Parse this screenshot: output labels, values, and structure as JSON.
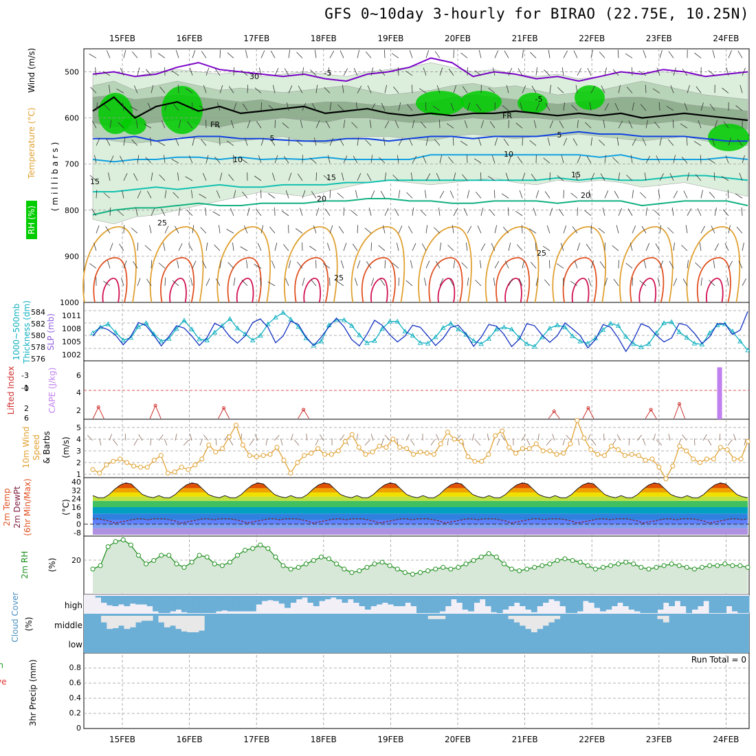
{
  "title": "GFS 0~10day 3-hourly for BIRAO (22.75E, 10.25N)",
  "dates": [
    "15FEB",
    "16FEB",
    "17FEB",
    "18FEB",
    "19FEB",
    "20FEB",
    "21FEB",
    "22FEB",
    "23FEB",
    "24FEB"
  ],
  "colors": {
    "rh_green": "#00cc00",
    "rh_light": "#dcefdc",
    "rh_mid": "#b8d4b8",
    "rh_dark": "#90b090",
    "purple": "#7a00c8",
    "blue": "#1040e0",
    "lightblue": "#10a0e0",
    "teal": "#10c0b0",
    "green": "#10b080",
    "orange": "#e0a030",
    "red": "#e05020",
    "crimson": "#d01050",
    "cloud": "#6baed6",
    "cloud_bg": "#f3eff7",
    "rhfill": "#d8e8d8",
    "rhline": "#209020"
  },
  "chart_data": [
    {
      "id": "upper_air",
      "type": "heatmap",
      "ylabel_parts": [
        "RH (%)",
        "Temperature (°C)",
        "Wind (m/s)"
      ],
      "ylabel_sub": "(millibars)",
      "y_ticks": [
        "500",
        "600",
        "700",
        "800",
        "900",
        "1000"
      ],
      "ylim": [
        1000,
        450
      ],
      "contour_labels": [
        "-5",
        "FR",
        "5",
        "10",
        "15",
        "20",
        "25",
        "30"
      ],
      "isotherms": [
        {
          "label": "-5",
          "level": [
            505,
            500,
            510,
            505,
            490,
            480,
            495,
            500,
            505,
            510,
            505,
            515,
            520,
            505,
            500,
            490,
            470,
            480,
            510,
            500,
            505,
            515,
            510,
            520,
            510,
            500,
            505,
            495,
            500,
            510,
            505,
            500
          ]
        },
        {
          "label": "FR",
          "level": [
            585,
            555,
            600,
            575,
            565,
            585,
            575,
            590,
            585,
            580,
            575,
            590,
            585,
            580,
            590,
            595,
            590,
            595,
            590,
            590,
            585,
            590,
            595,
            590,
            595,
            590,
            600,
            595,
            590,
            595,
            600,
            605
          ]
        },
        {
          "label": "5",
          "level": [
            645,
            645,
            640,
            650,
            645,
            640,
            640,
            645,
            645,
            648,
            650,
            650,
            645,
            645,
            650,
            645,
            640,
            640,
            645,
            640,
            640,
            640,
            635,
            630,
            635,
            635,
            640,
            640,
            640,
            645,
            650,
            650
          ]
        },
        {
          "label": "10",
          "level": [
            690,
            695,
            690,
            690,
            685,
            685,
            690,
            685,
            690,
            688,
            690,
            685,
            690,
            690,
            690,
            690,
            680,
            680,
            680,
            680,
            680,
            680,
            680,
            680,
            685,
            680,
            690,
            690,
            690,
            690,
            685,
            690
          ]
        },
        {
          "label": "15",
          "level": [
            760,
            760,
            755,
            750,
            755,
            750,
            745,
            750,
            750,
            745,
            745,
            745,
            740,
            740,
            735,
            735,
            735,
            735,
            735,
            735,
            735,
            735,
            730,
            735,
            730,
            735,
            735,
            730,
            725,
            725,
            730,
            735
          ]
        },
        {
          "label": "20",
          "level": [
            810,
            800,
            795,
            795,
            790,
            785,
            790,
            790,
            785,
            785,
            785,
            780,
            780,
            775,
            775,
            780,
            780,
            785,
            785,
            780,
            780,
            780,
            785,
            780,
            780,
            780,
            790,
            785,
            780,
            780,
            780,
            790
          ]
        }
      ]
    },
    {
      "id": "slp_thickness",
      "type": "line",
      "left_labels": [
        "1000~500mb",
        "Thickness (dm)"
      ],
      "right_label": "SLP (mb)",
      "y_ticks_left": [
        "584",
        "582",
        "580",
        "578",
        "576"
      ],
      "y_ticks_right": [
        "1011",
        "1008",
        "1005",
        "1002"
      ],
      "series": [
        {
          "name": "Thickness",
          "color": "#10b0c0",
          "values": [
            580.2,
            581.3,
            581.9,
            580.3,
            578.8,
            579.3,
            581.4,
            582.1,
            580.0,
            578.6,
            579.1,
            581.0,
            582.6,
            580.9,
            579.0,
            578.8,
            580.3,
            581.6,
            582.9,
            581.1,
            580.0,
            578.8,
            579.7,
            581.9,
            583.2,
            584.1,
            582.8,
            581.4,
            579.2,
            577.8,
            578.6,
            581.7,
            582.7,
            582.7,
            581.6,
            579.8,
            578.3,
            578.7,
            581.0,
            582.4,
            582.4,
            580.5,
            579.7,
            578.3,
            578.2,
            579.4,
            581.2,
            582.0,
            580.9,
            579.9,
            578.7,
            578.1,
            579.1,
            580.9,
            581.3,
            580.9,
            579.3,
            578.1,
            577.6,
            579.4,
            581.1,
            581.7,
            581.3,
            579.6,
            578.6,
            578.2,
            579.2,
            580.8,
            582.0,
            581.6,
            579.5,
            578.1,
            577.5,
            578.1,
            580.2,
            582.1,
            582.3,
            580.4,
            579.3,
            578.2,
            578.0,
            580.2,
            581.7,
            581.9,
            580.5,
            578.6,
            576.9
          ]
        },
        {
          "name": "SLP",
          "color": "#1030c0",
          "values": [
            1005.9,
            1008.2,
            1007.5,
            1006.1,
            1003.7,
            1005.8,
            1009.3,
            1008.5,
            1006.1,
            1003.4,
            1005.8,
            1008.5,
            1007.9,
            1005.9,
            1003.5,
            1005.5,
            1009.1,
            1008.2,
            1005.7,
            1004.1,
            1005.9,
            1009.3,
            1010.2,
            1008.1,
            1004.2,
            1005.9,
            1009.7,
            1008.8,
            1005.6,
            1003.5,
            1005.6,
            1008.2,
            1010.4,
            1008.2,
            1005.0,
            1003.4,
            1006.3,
            1009.9,
            1008.6,
            1006.2,
            1004.4,
            1005.9,
            1008.6,
            1008.1,
            1005.9,
            1003.5,
            1005.3,
            1008.1,
            1008.6,
            1006.4,
            1003.3,
            1005.6,
            1008.8,
            1008.4,
            1006.3,
            1003.2,
            1005.1,
            1009.0,
            1008.5,
            1006.1,
            1004.3,
            1006.0,
            1009.2,
            1007.7,
            1006.0,
            1002.9,
            1005.0,
            1008.8,
            1008.1,
            1005.4,
            1002.0,
            1005.0,
            1009.0,
            1008.2,
            1006.1,
            1004.4,
            1005.4,
            1009.1,
            1008.6,
            1006.6,
            1004.0,
            1005.7,
            1009.0,
            1009.0,
            1006.3,
            1007.4,
            1012.1
          ]
        }
      ]
    },
    {
      "id": "stability",
      "type": "line",
      "left_label": "Lifted Index",
      "right_label": "CAPE (J/kg)",
      "y_ticks_left": [
        "-3",
        "-1",
        "0",
        "2",
        "6"
      ],
      "y_ticks_right": [
        "6",
        "4",
        "2"
      ],
      "li_events": [
        {
          "i": 1,
          "v": 2.6
        },
        {
          "i": 11,
          "v": 3.0
        },
        {
          "i": 23,
          "v": 2.4
        },
        {
          "i": 37,
          "v": 2.0
        },
        {
          "i": 81,
          "v": 1.6
        },
        {
          "i": 87,
          "v": 2.4
        },
        {
          "i": 98,
          "v": 2.0
        },
        {
          "i": 103,
          "v": 3.4
        }
      ],
      "cape": [
        {
          "i": 110,
          "v": 7.2
        }
      ]
    },
    {
      "id": "wind10m",
      "type": "line",
      "left_labels": [
        "10m Wind",
        "Speed",
        "& Barbs"
      ],
      "unit": "(m/s)",
      "y_ticks": [
        "5",
        "4",
        "3",
        "2",
        "1"
      ],
      "series": [
        {
          "name": "Speed",
          "color": "#e0a030",
          "values": [
            1.4,
            1.1,
            1.8,
            2.1,
            2.3,
            2.0,
            1.7,
            1.6,
            1.6,
            2.2,
            2.6,
            1.1,
            1.2,
            1.6,
            1.4,
            1.8,
            2.3,
            3.5,
            2.9,
            3.2,
            4.2,
            5.2,
            3.5,
            2.6,
            2.5,
            2.6,
            2.7,
            3.3,
            2.2,
            1.1,
            2.0,
            2.6,
            2.8,
            3.2,
            2.7,
            2.7,
            3.0,
            3.8,
            4.4,
            3.3,
            2.7,
            2.9,
            3.4,
            3.3,
            4.0,
            3.3,
            3.2,
            2.7,
            2.9,
            2.8,
            2.7,
            3.6,
            4.6,
            4.0,
            3.8,
            2.5,
            2.1,
            2.1,
            2.7,
            4.3,
            4.7,
            3.3,
            2.8,
            3.2,
            3.2,
            3.6,
            3.0,
            3.0,
            2.7,
            2.8,
            3.6,
            5.6,
            4.1,
            3.1,
            2.7,
            2.6,
            3.4,
            3.1,
            2.6,
            2.7,
            2.6,
            2.2,
            2.3,
            1.6,
            0.6,
            1.7,
            3.4,
            3.0,
            2.3,
            2.0,
            2.3,
            2.3,
            3.3,
            3.1,
            2.3,
            2.3,
            3.8
          ]
        }
      ]
    },
    {
      "id": "temp2m",
      "type": "area",
      "left_labels": [
        "2m Temp",
        "2m DewPt",
        "(6hr Min/Max)"
      ],
      "unit": "(°C)",
      "y_ticks": [
        "40",
        "32",
        "24",
        "16",
        "8",
        "0",
        "-8"
      ],
      "temp_pattern": [
        27,
        25,
        25,
        28,
        33,
        37,
        39,
        38,
        33,
        28,
        26,
        25
      ],
      "dew_pattern": [
        5,
        5,
        4,
        3,
        1,
        2,
        3,
        4,
        5,
        5,
        4,
        5
      ]
    },
    {
      "id": "rh2m",
      "type": "line",
      "left_label": "2m RH",
      "unit": "(%)",
      "y_ticks": [
        "20"
      ],
      "series": [
        {
          "name": "RH",
          "color": "#209020",
          "values": [
            14,
            16,
            27,
            30,
            31,
            28,
            22,
            17,
            19,
            22,
            22,
            17,
            15,
            18,
            22,
            21,
            17,
            16,
            18,
            22,
            25,
            26,
            28,
            26,
            21,
            16,
            14,
            15,
            17,
            19,
            21,
            20,
            17,
            14,
            12,
            13,
            15,
            17,
            18,
            16,
            14,
            12,
            11,
            12,
            13,
            14,
            15,
            14,
            15,
            17,
            19,
            21,
            23,
            21,
            17,
            14,
            13,
            14,
            15,
            16,
            17,
            19,
            20,
            19,
            18,
            16,
            14,
            15,
            16,
            17,
            18,
            17,
            15,
            14,
            15,
            16,
            17,
            16,
            15,
            14,
            15,
            16,
            16,
            17,
            16,
            16,
            15
          ]
        }
      ]
    },
    {
      "id": "cloud",
      "type": "bar",
      "ylabel": "Cloud Cover",
      "unit": "(%)",
      "levels": [
        "high",
        "middle",
        "low"
      ],
      "high": [
        0,
        0,
        10,
        40,
        55,
        60,
        50,
        60,
        45,
        50,
        50,
        60,
        90,
        100,
        100,
        90,
        80,
        95,
        100,
        100,
        100,
        100,
        100,
        90,
        85,
        90,
        90,
        90,
        90,
        90,
        50,
        30,
        25,
        30,
        45,
        70,
        40,
        20,
        10,
        40,
        60,
        30,
        20,
        10,
        20,
        40,
        20,
        40,
        60,
        80,
        60,
        50,
        40,
        50,
        60,
        60,
        40,
        60,
        100,
        100,
        100,
        100,
        90,
        60,
        20,
        40,
        80,
        90,
        40,
        20,
        60,
        95,
        100,
        80,
        60,
        40,
        60,
        80,
        95,
        60,
        40,
        20,
        30,
        60,
        100,
        100,
        90,
        30,
        40,
        70,
        90,
        80,
        60,
        40,
        60,
        80,
        90,
        100,
        100,
        100,
        80,
        40,
        60,
        30,
        60,
        100,
        80,
        60,
        30,
        100,
        100,
        100,
        60,
        90,
        100,
        100
      ],
      "middle": [
        0,
        0,
        0,
        40,
        80,
        75,
        60,
        80,
        70,
        40,
        30,
        30,
        0,
        40,
        70,
        60,
        80,
        95,
        100,
        100,
        90,
        0,
        0,
        0,
        0,
        0,
        0,
        0,
        0,
        0,
        0,
        0,
        0,
        0,
        0,
        0,
        0,
        0,
        0,
        0,
        0,
        0,
        0,
        0,
        0,
        0,
        0,
        0,
        0,
        0,
        0,
        0,
        0,
        0,
        0,
        0,
        0,
        0,
        0,
        0,
        20,
        20,
        20,
        0,
        0,
        0,
        0,
        0,
        0,
        0,
        0,
        0,
        0,
        0,
        20,
        40,
        60,
        80,
        100,
        80,
        60,
        40,
        20,
        0,
        0,
        0,
        0,
        0,
        0,
        0,
        0,
        0,
        0,
        0,
        0,
        0,
        0,
        0,
        0,
        0,
        20,
        40,
        0,
        0,
        0,
        0,
        0,
        0,
        0,
        0,
        0,
        0,
        0,
        0,
        0,
        0
      ]
    },
    {
      "id": "precip",
      "type": "bar",
      "left_labels": [
        "Total / Rain",
        "Convective"
      ],
      "ylabel": "3hr Precip (mm)",
      "y_ticks": [
        "0.8",
        "0.6",
        "0.4",
        "0.2",
        "0"
      ],
      "run_total": "Run Total = 0"
    }
  ]
}
